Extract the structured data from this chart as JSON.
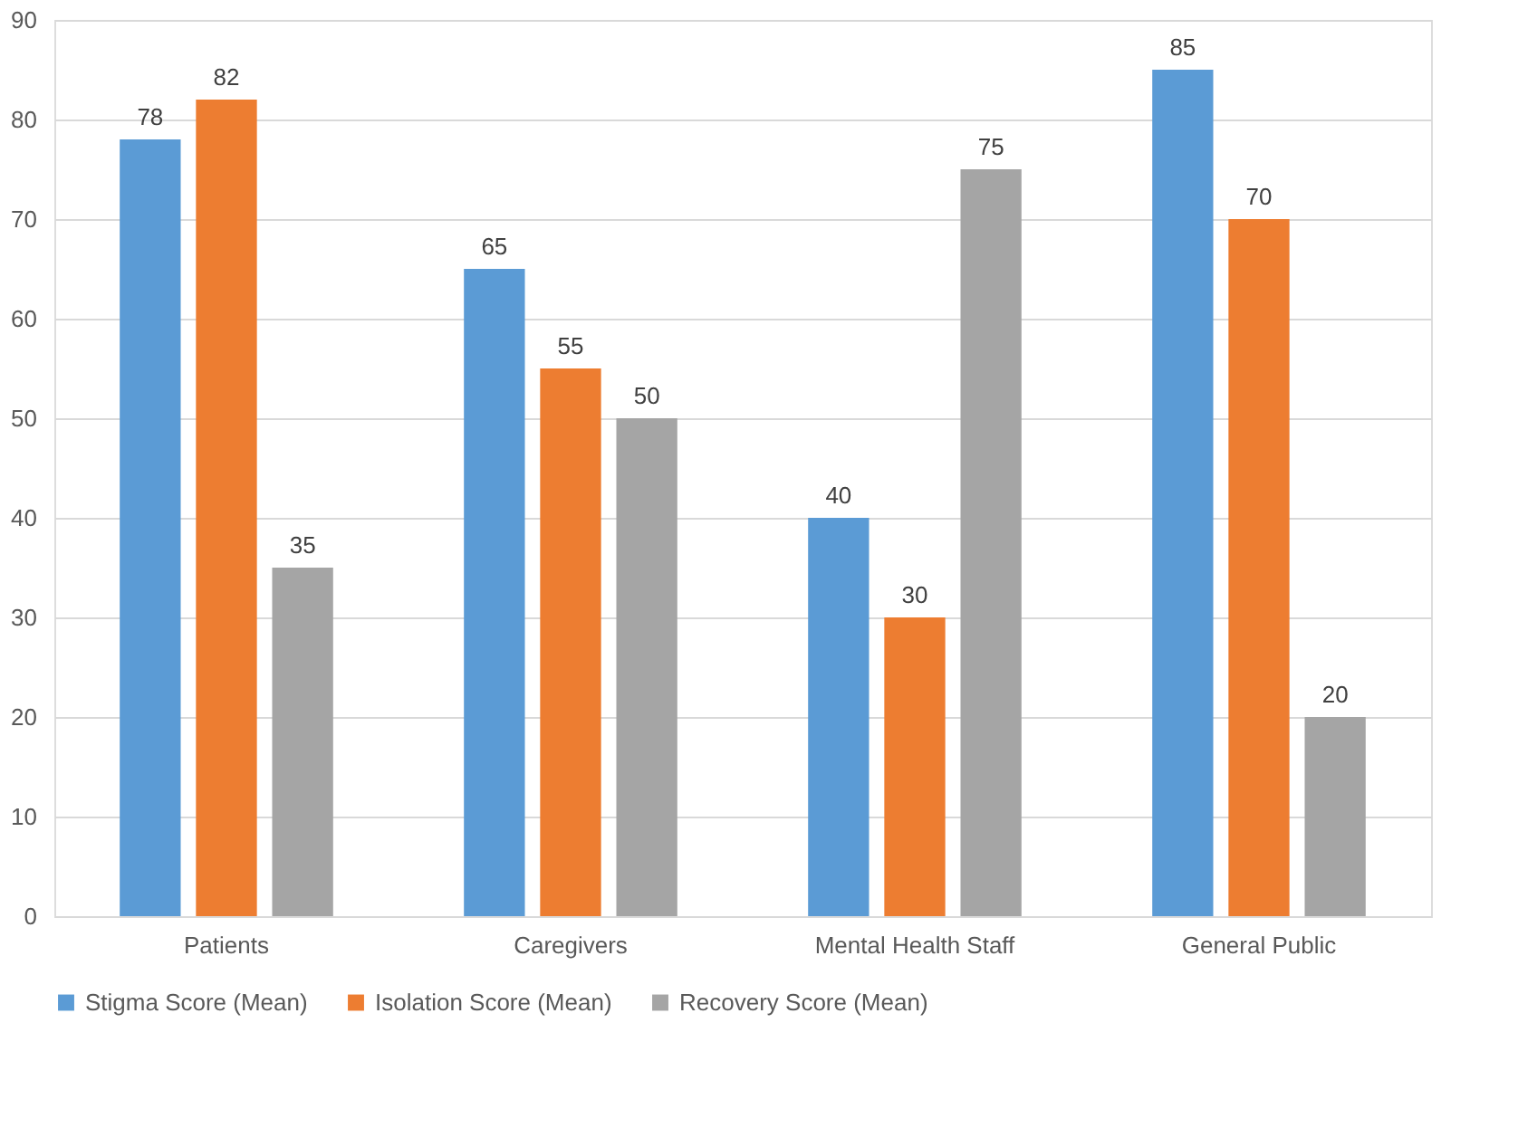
{
  "chart_data": {
    "type": "bar",
    "categories": [
      "Patients",
      "Caregivers",
      "Mental Health Staff",
      "General Public"
    ],
    "series": [
      {
        "name": "Stigma Score (Mean)",
        "color": "#5b9bd5",
        "values": [
          78,
          65,
          40,
          85
        ]
      },
      {
        "name": "Isolation Score (Mean)",
        "color": "#ed7d31",
        "values": [
          82,
          55,
          30,
          70
        ]
      },
      {
        "name": "Recovery Score (Mean)",
        "color": "#a5a5a5",
        "values": [
          35,
          50,
          75,
          20
        ]
      }
    ],
    "ylim": [
      0,
      90
    ],
    "yticks": [
      0,
      10,
      20,
      30,
      40,
      50,
      60,
      70,
      80,
      90
    ],
    "grid": "y",
    "legend": "bottom",
    "data_labels": true
  }
}
